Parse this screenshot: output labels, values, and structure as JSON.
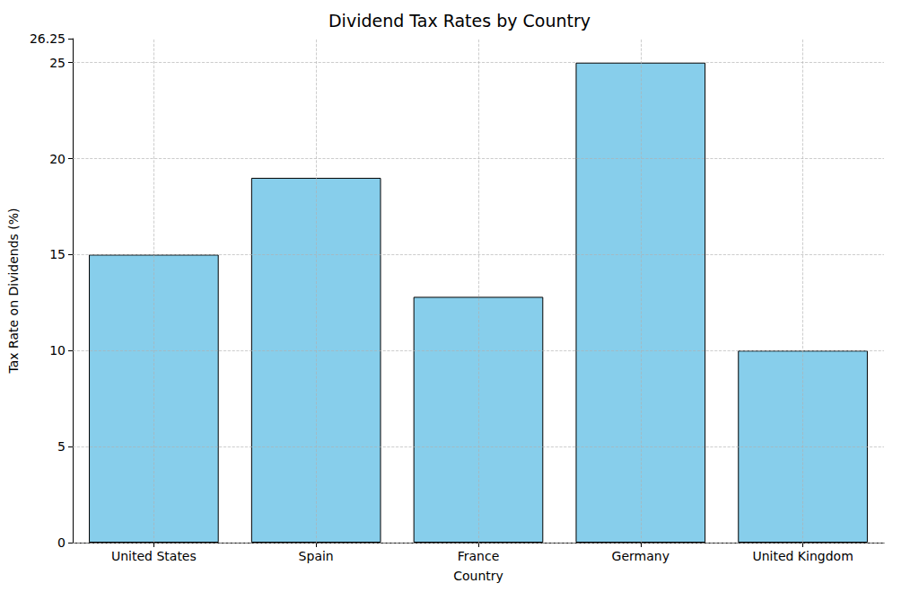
{
  "chart_data": {
    "type": "bar",
    "title": "Dividend Tax Rates by Country",
    "x_label": "Country",
    "y_label": "Tax Rate on Dividends (%)",
    "categories": [
      "United States",
      "Spain",
      "France",
      "Germany",
      "United Kingdom"
    ],
    "values": [
      15,
      19,
      12.8,
      25,
      10
    ],
    "color": "#87ceeb",
    "ylim": [
      0,
      26.25
    ],
    "yticks": [
      0,
      5,
      10,
      15,
      20,
      25
    ],
    "grid": true
  }
}
